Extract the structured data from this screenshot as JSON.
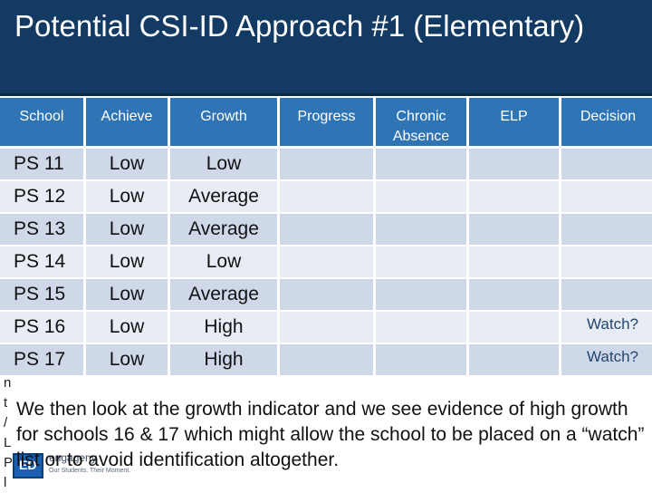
{
  "title": "Potential CSI-ID Approach #1 (Elementary)",
  "table": {
    "headers": [
      "School",
      "Achieve",
      "Growth",
      "Progress",
      "Chronic Absence",
      "ELP",
      "Decision"
    ],
    "rows": [
      {
        "school": "PS 11",
        "achieve": "Low",
        "growth": "Low",
        "progress": "",
        "chronic": "",
        "elp": "",
        "decision": ""
      },
      {
        "school": "PS 12",
        "achieve": "Low",
        "growth": "Average",
        "progress": "",
        "chronic": "",
        "elp": "",
        "decision": ""
      },
      {
        "school": "PS 13",
        "achieve": "Low",
        "growth": "Average",
        "progress": "",
        "chronic": "",
        "elp": "",
        "decision": ""
      },
      {
        "school": "PS 14",
        "achieve": "Low",
        "growth": "Low",
        "progress": "",
        "chronic": "",
        "elp": "",
        "decision": ""
      },
      {
        "school": "PS 15",
        "achieve": "Low",
        "growth": "Average",
        "progress": "",
        "chronic": "",
        "elp": "",
        "decision": ""
      },
      {
        "school": "PS 16",
        "achieve": "Low",
        "growth": "High",
        "progress": "",
        "chronic": "",
        "elp": "",
        "decision": "Watch?"
      },
      {
        "school": "PS 17",
        "achieve": "Low",
        "growth": "High",
        "progress": "",
        "chronic": "",
        "elp": "",
        "decision": "Watch?"
      }
    ]
  },
  "note": "We then look at the growth indicator and we see evidence of high growth for schools 16 & 17 which might allow the school to be placed on a “watch” list or to avoid identification altogether.",
  "side_letters": "n\nt\n/\nL\nP\nl",
  "logo": {
    "text": "engageny",
    "tagline": "Our Students. Their Moment."
  },
  "colors": {
    "title_bar": "#123a63",
    "header": "#2f75b5",
    "row_odd": "#cfd8e8",
    "row_even": "#e8ecf4"
  }
}
